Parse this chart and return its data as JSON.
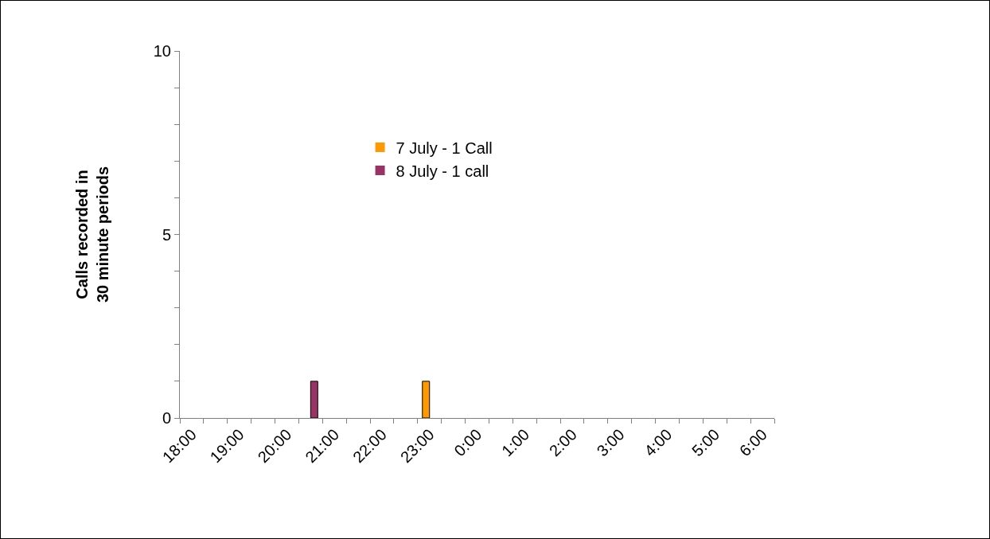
{
  "chart_data": {
    "type": "bar",
    "ylabel": "Calls recorded in\n30 minute periods",
    "categories": [
      "18:00",
      null,
      "19:00",
      null,
      "20:00",
      null,
      "21:00",
      null,
      "22:00",
      null,
      "23:00",
      null,
      "0:00",
      null,
      "1:00",
      null,
      "2:00",
      null,
      "3:00",
      null,
      "4:00",
      null,
      "5:00",
      null,
      "6:00"
    ],
    "series": [
      {
        "name": "7 July - 1 Call",
        "color": "#ff9900",
        "values": [
          0,
          0,
          0,
          0,
          0,
          0,
          0,
          0,
          0,
          0,
          1,
          0,
          0,
          0,
          0,
          0,
          0,
          0,
          0,
          0,
          0,
          0,
          0,
          0,
          0
        ]
      },
      {
        "name": "8 July - 1 call",
        "color": "#993366",
        "values": [
          0,
          0,
          0,
          0,
          0,
          1,
          0,
          0,
          0,
          0,
          0,
          0,
          0,
          0,
          0,
          0,
          0,
          0,
          0,
          0,
          0,
          0,
          0,
          0,
          0
        ]
      }
    ],
    "ylim": [
      0,
      10
    ],
    "yticks": [
      0,
      {
        "value": 1,
        "label": null
      },
      {
        "value": 2,
        "label": null
      },
      {
        "value": 3,
        "label": null
      },
      {
        "value": 4,
        "label": null
      },
      5,
      {
        "value": 6,
        "label": null
      },
      {
        "value": 7,
        "label": null
      },
      {
        "value": 8,
        "label": null
      },
      {
        "value": 9,
        "label": null
      },
      10
    ],
    "grid": false,
    "legend": "top"
  }
}
